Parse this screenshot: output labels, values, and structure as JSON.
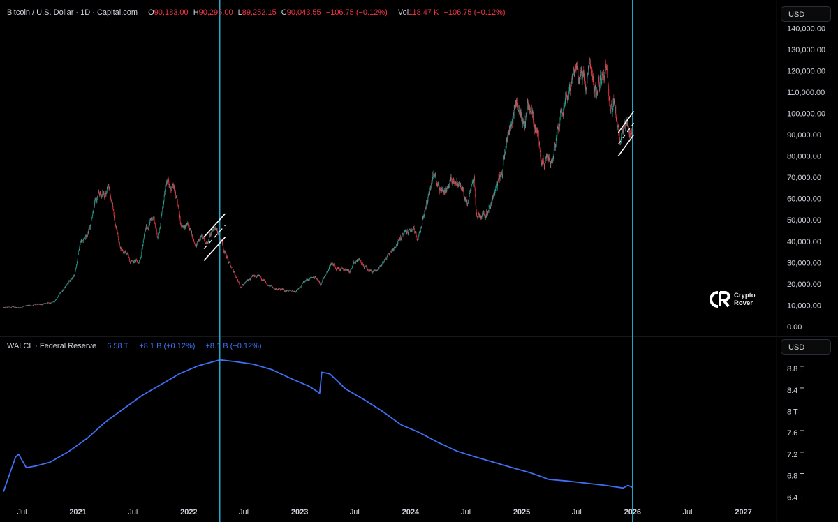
{
  "colors": {
    "up": "#26a69a",
    "down": "#f23645",
    "walcl": "#3f6ff5",
    "vline": "#22a9c9",
    "channel": "#ffffff",
    "axis_text": "#d1d4dc"
  },
  "price_legend": {
    "symbol": "Bitcoin / U.S. Dollar · 1D · Capital.com",
    "o_label": "O",
    "o_value": "90,183.00",
    "h_label": "H",
    "h_value": "90,295.00",
    "l_label": "L",
    "l_value": "89,252.15",
    "c_label": "C",
    "c_value": "90,043.55",
    "change": "−106.75 (−0.12%)",
    "vol_label": "Vol",
    "vol_value": "118.47 K",
    "vol_change": "−106.75 (−0.12%)"
  },
  "walcl_legend": {
    "name": "WALCL · Federal Reserve",
    "value": "6.58 T",
    "change1": "+8.1 B (+0.12%)",
    "change2": "+8.1 B (+0.12%)"
  },
  "currency_top": "USD",
  "currency_bottom": "USD",
  "logo": {
    "line1": "Crypto",
    "line2": "Rover"
  },
  "chart_data": [
    {
      "type": "candlestick",
      "title": "Bitcoin / U.S. Dollar · 1D · Capital.com",
      "ylabel": "USD",
      "ylim": [
        0,
        145000
      ],
      "y_ticks": [
        "140,000.00",
        "130,000.00",
        "120,000.00",
        "110,000.00",
        "100,000.00",
        "90,000.00",
        "80,000.00",
        "70,000.00",
        "60,000.00",
        "50,000.00",
        "40,000.00",
        "30,000.00",
        "20,000.00",
        "10,000.00",
        "0.00"
      ],
      "x_ticks": [
        "Jul",
        "2021",
        "Jul",
        "2022",
        "Jul",
        "2023",
        "Jul",
        "2024",
        "Jul",
        "2025",
        "Jul",
        "2026",
        "Jul",
        "2027"
      ],
      "x_tick_dates": [
        "2020-07-01",
        "2021-01-01",
        "2021-07-01",
        "2022-01-01",
        "2022-07-01",
        "2023-01-01",
        "2023-07-01",
        "2024-01-01",
        "2024-07-01",
        "2025-01-01",
        "2025-07-01",
        "2026-01-01",
        "2026-07-01",
        "2027-01-01"
      ],
      "series": [
        {
          "x": [
            "2020-05-01",
            "2020-07-01",
            "2020-09-01",
            "2020-10-15",
            "2020-11-20",
            "2020-12-20",
            "2021-01-08",
            "2021-02-10",
            "2021-02-21",
            "2021-03-13",
            "2021-04-14",
            "2021-05-19",
            "2021-06-22",
            "2021-07-20",
            "2021-08-14",
            "2021-09-07",
            "2021-09-21",
            "2021-10-20",
            "2021-11-10",
            "2021-12-04",
            "2022-01-01",
            "2022-01-24",
            "2022-02-10",
            "2022-02-24",
            "2022-03-28",
            "2022-04-20",
            "2022-05-10",
            "2022-06-18",
            "2022-08-14",
            "2022-09-20",
            "2022-11-09",
            "2022-12-20",
            "2023-01-14",
            "2023-02-20",
            "2023-03-10",
            "2023-04-14",
            "2023-05-15",
            "2023-06-15",
            "2023-07-13",
            "2023-08-17",
            "2023-09-11",
            "2023-10-24",
            "2023-12-08",
            "2024-01-11",
            "2024-01-23",
            "2024-02-28",
            "2024-03-14",
            "2024-04-20",
            "2024-05-21",
            "2024-06-20",
            "2024-07-05",
            "2024-07-29",
            "2024-08-05",
            "2024-09-06",
            "2024-10-29",
            "2024-11-12",
            "2024-12-17",
            "2025-01-13",
            "2025-01-21",
            "2025-02-25",
            "2025-03-11",
            "2025-04-08",
            "2025-05-22",
            "2025-07-14",
            "2025-08-02",
            "2025-08-14",
            "2025-09-01",
            "2025-10-06",
            "2025-10-11",
            "2025-11-04",
            "2025-11-21",
            "2025-12-10",
            "2026-01-01"
          ],
          "close": [
            8800,
            9200,
            10500,
            11500,
            18500,
            23500,
            39000,
            47000,
            57000,
            61000,
            63500,
            38000,
            31500,
            30000,
            46000,
            52000,
            42000,
            66000,
            67000,
            49000,
            47000,
            36000,
            44000,
            38000,
            47000,
            40000,
            31000,
            19000,
            24000,
            19000,
            16500,
            16800,
            20500,
            23500,
            20000,
            30000,
            27000,
            26000,
            31300,
            26000,
            26000,
            34500,
            43000,
            46000,
            39500,
            61000,
            71500,
            64000,
            70000,
            64000,
            56000,
            68000,
            52000,
            54000,
            72000,
            89000,
            106000,
            94000,
            106000,
            88000,
            78500,
            76300,
            111000,
            120000,
            113000,
            123500,
            108000,
            124500,
            113000,
            103000,
            84000,
            92000,
            90043.55
          ]
        }
      ]
    },
    {
      "type": "line",
      "title": "WALCL · Federal Reserve",
      "ylabel": "USD",
      "ylim": [
        6.3,
        9.1
      ],
      "y_ticks": [
        "8.8 T",
        "8.4 T",
        "8 T",
        "7.6 T",
        "7.2 T",
        "6.8 T",
        "6.4 T"
      ],
      "series": [
        {
          "name": "WALCL · Federal Reserve",
          "x": [
            "2020-05-01",
            "2020-06-10",
            "2020-06-20",
            "2020-07-15",
            "2020-08-15",
            "2020-10-01",
            "2020-12-01",
            "2021-02-01",
            "2021-04-01",
            "2021-06-01",
            "2021-08-01",
            "2021-10-01",
            "2021-12-01",
            "2022-02-01",
            "2022-04-13",
            "2022-06-01",
            "2022-08-01",
            "2022-10-01",
            "2022-12-01",
            "2023-02-01",
            "2023-03-08",
            "2023-03-15",
            "2023-04-10",
            "2023-06-01",
            "2023-08-01",
            "2023-10-01",
            "2023-12-01",
            "2024-02-01",
            "2024-04-01",
            "2024-06-01",
            "2024-08-01",
            "2024-10-01",
            "2024-12-01",
            "2025-02-01",
            "2025-04-01",
            "2025-06-01",
            "2025-08-01",
            "2025-10-01",
            "2025-12-01",
            "2025-12-17",
            "2026-01-01"
          ],
          "y": [
            6.5,
            7.15,
            7.2,
            6.95,
            6.98,
            7.05,
            7.25,
            7.5,
            7.8,
            8.05,
            8.3,
            8.5,
            8.7,
            8.85,
            8.96,
            8.93,
            8.88,
            8.78,
            8.62,
            8.47,
            8.34,
            8.73,
            8.7,
            8.42,
            8.22,
            8.0,
            7.75,
            7.6,
            7.42,
            7.26,
            7.15,
            7.05,
            6.95,
            6.85,
            6.73,
            6.7,
            6.66,
            6.62,
            6.57,
            6.62,
            6.58
          ]
        }
      ]
    }
  ],
  "vlines": [
    "2022-04-13",
    "2026-01-01"
  ],
  "channels": [
    {
      "start": "2022-02-20",
      "end": "2022-05-01",
      "low_start": 31000,
      "low_end": 42000,
      "high_start": 42000,
      "high_end": 53000
    },
    {
      "start": "2025-11-15",
      "end": "2026-01-05",
      "low_start": 80000,
      "low_end": 90000,
      "high_start": 91000,
      "high_end": 101000
    }
  ]
}
